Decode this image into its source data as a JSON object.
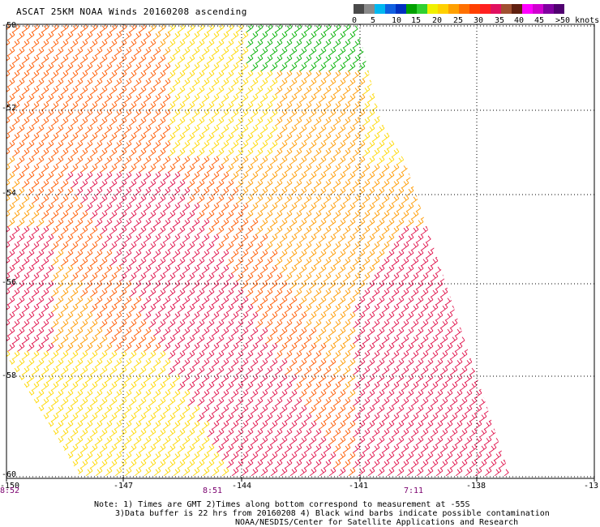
{
  "title": "ASCAT 25KM NOAA Winds 20160208 ascending",
  "color_scale": {
    "labels": [
      "0",
      "5",
      "10",
      "15",
      "20",
      "25",
      "30",
      "35",
      "40",
      "45",
      ">50 knots"
    ],
    "colors": [
      "#4a4a4a",
      "#8a8a8a",
      "#00b8f0",
      "#1060e0",
      "#0030c0",
      "#00a000",
      "#30d030",
      "#f0f000",
      "#ffd000",
      "#ffa000",
      "#ff7000",
      "#ff4000",
      "#ff2020",
      "#e01060",
      "#a05030",
      "#602010",
      "#ff00ff",
      "#d000d0",
      "#8000a0",
      "#500070"
    ]
  },
  "lat_labels": [
    "-50",
    "-52",
    "-54",
    "-56",
    "-58",
    "-60"
  ],
  "lon_labels": [
    "-150",
    "-147",
    "-144",
    "-141",
    "-138",
    "-13"
  ],
  "times": [
    "8:52",
    "8:51",
    "7:11"
  ],
  "notes": {
    "line1": "Note: 1) Times are GMT 2)Times along bottom correspond to measurement at -55S",
    "line2": "3)Data buffer is 22 hrs from 20160208 4) Black wind barbs indicate possible contamination",
    "line3": "NOAA/NESDIS/Center for Satellite Applications and Research"
  },
  "wind_field": {
    "region_colors": {
      "low": "#ffd800",
      "mid": "#ff9a00",
      "high": "#ff5a00",
      "peak": "#e0104a",
      "calm": "#00b000",
      "rain": "#0030c0"
    }
  }
}
